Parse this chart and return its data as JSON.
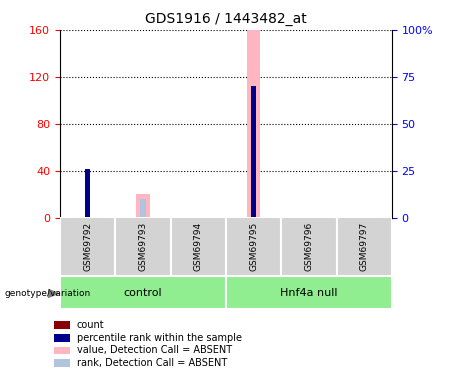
{
  "title": "GDS1916 / 1443482_at",
  "samples": [
    "GSM69792",
    "GSM69793",
    "GSM69794",
    "GSM69795",
    "GSM69796",
    "GSM69797"
  ],
  "count_values": [
    40,
    0,
    0,
    0,
    0,
    0
  ],
  "rank_values_pct": [
    26,
    0,
    0,
    70,
    0,
    0
  ],
  "absent_value_values": [
    0,
    20,
    0,
    160,
    0,
    0
  ],
  "absent_rank_pct": [
    0,
    10,
    0,
    0,
    0,
    0
  ],
  "count_color": "#8B0000",
  "rank_color": "#00008B",
  "absent_value_color": "#FFB6C1",
  "absent_rank_color": "#B0C4DE",
  "ylim_left": [
    0,
    160
  ],
  "ylim_right": [
    0,
    100
  ],
  "left_yticks": [
    0,
    40,
    80,
    120,
    160
  ],
  "right_yticks": [
    0,
    25,
    50,
    75,
    100
  ],
  "right_yticklabels": [
    "0",
    "25",
    "50",
    "75",
    "100%"
  ],
  "sample_area_bg": "#d3d3d3",
  "group_area_bg": "#90EE90"
}
